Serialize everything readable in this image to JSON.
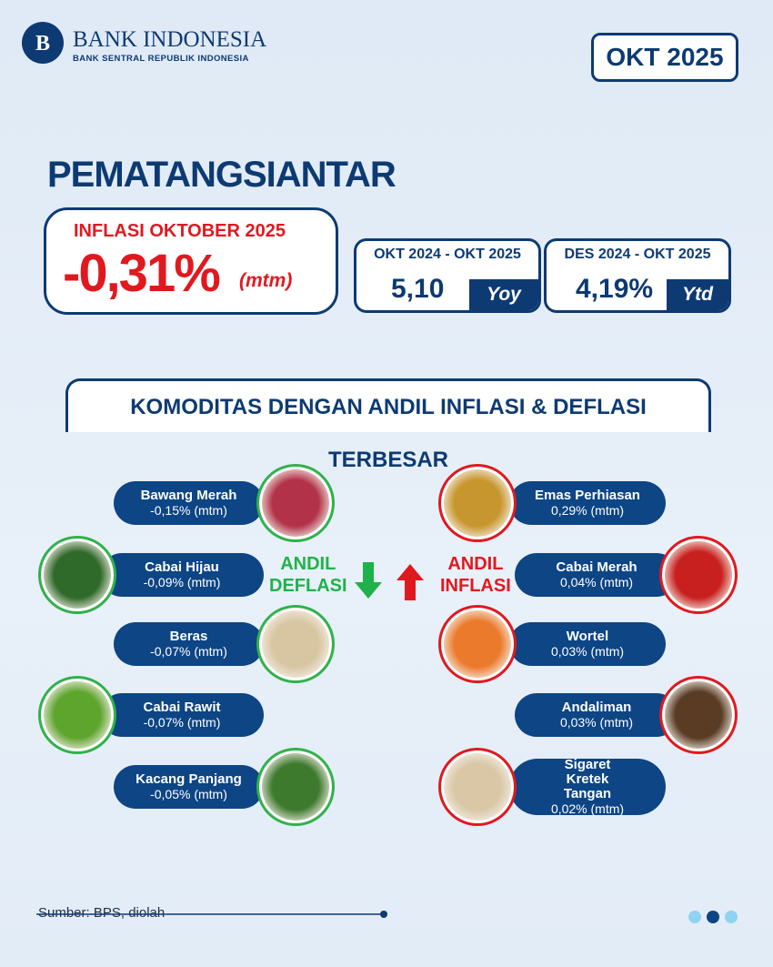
{
  "header": {
    "brand": "BANK INDONESIA",
    "tagline": "BANK SENTRAL REPUBLIK INDONESIA",
    "period": "OKT 2025"
  },
  "city": "PEMATANGSIANTAR",
  "main": {
    "label": "INFLASI OKTOBER 2025",
    "value": "-0,31%",
    "unit": "(mtm)"
  },
  "yoy": {
    "period": "OKT 2024 - OKT 2025",
    "value": "5,10",
    "tag": "Yoy"
  },
  "ytd": {
    "period": "DES 2024 - OKT 2025",
    "value": "4,19%",
    "tag": "Ytd"
  },
  "section_title": "KOMODITAS DENGAN ANDIL INFLASI & DEFLASI TERBESAR",
  "deflasi": {
    "label_1": "ANDIL",
    "label_2": "DEFLASI",
    "items": [
      {
        "name": "Bawang Merah",
        "value": "-0,15% (mtm)"
      },
      {
        "name": "Cabai Hijau",
        "value": "-0,09% (mtm)"
      },
      {
        "name": "Beras",
        "value": "-0,07% (mtm)"
      },
      {
        "name": "Cabai Rawit",
        "value": "-0,07% (mtm)"
      },
      {
        "name": "Kacang Panjang",
        "value": "-0,05% (mtm)"
      }
    ]
  },
  "inflasi": {
    "label_1": "ANDIL",
    "label_2": "INFLASI",
    "items": [
      {
        "name": "Emas Perhiasan",
        "value": "0,29% (mtm)"
      },
      {
        "name": "Cabai Merah",
        "value": "0,04% (mtm)"
      },
      {
        "name": "Wortel",
        "value": "0,03% (mtm)"
      },
      {
        "name": "Andaliman",
        "value": "0,03% (mtm)"
      },
      {
        "name": "Sigaret Kretek Tangan",
        "value": "0,02% (mtm)"
      }
    ]
  },
  "footer": {
    "source": "Sumber: BPS, diolah"
  }
}
